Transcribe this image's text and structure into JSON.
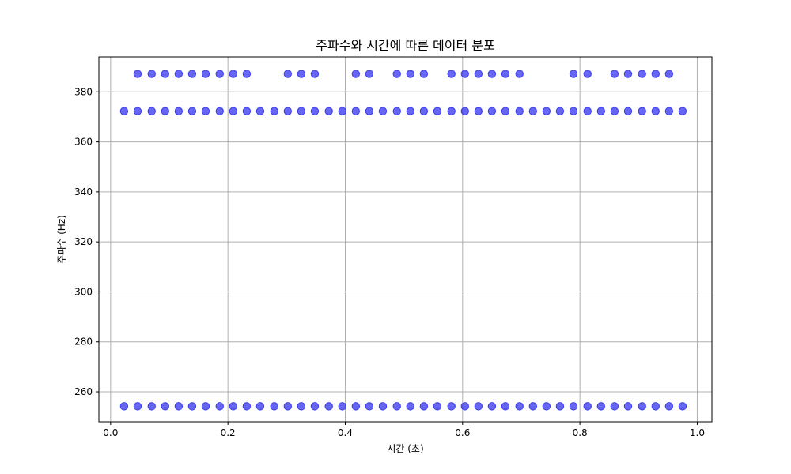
{
  "chart_data": {
    "type": "scatter",
    "title": "주파수와 시간에 따른 데이터 분포",
    "xlabel": "시간 (초)",
    "ylabel": "주파수 (Hz)",
    "xlim": [
      -0.02,
      1.025
    ],
    "ylim": [
      248,
      394
    ],
    "xticks": [
      0.0,
      0.2,
      0.4,
      0.6,
      0.8,
      1.0
    ],
    "xtick_labels": [
      "0.0",
      "0.2",
      "0.4",
      "0.6",
      "0.8",
      "1.0"
    ],
    "yticks": [
      260,
      280,
      300,
      320,
      340,
      360,
      380
    ],
    "ytick_labels": [
      "260",
      "280",
      "300",
      "320",
      "340",
      "360",
      "380"
    ],
    "grid": true,
    "marker_color": "#3333ee",
    "marker_alpha": 0.75,
    "series": [
      {
        "y": 254.2,
        "x": [
          0.023,
          0.046,
          0.07,
          0.093,
          0.116,
          0.139,
          0.162,
          0.186,
          0.209,
          0.232,
          0.255,
          0.279,
          0.302,
          0.325,
          0.348,
          0.372,
          0.395,
          0.418,
          0.441,
          0.464,
          0.488,
          0.511,
          0.534,
          0.557,
          0.581,
          0.604,
          0.627,
          0.65,
          0.673,
          0.697,
          0.72,
          0.743,
          0.766,
          0.789,
          0.813,
          0.836,
          0.859,
          0.882,
          0.906,
          0.929,
          0.952,
          0.975
        ]
      },
      {
        "y": 372.3,
        "x": [
          0.023,
          0.046,
          0.07,
          0.093,
          0.116,
          0.139,
          0.162,
          0.186,
          0.209,
          0.232,
          0.255,
          0.279,
          0.302,
          0.325,
          0.348,
          0.372,
          0.395,
          0.418,
          0.441,
          0.464,
          0.488,
          0.511,
          0.534,
          0.557,
          0.581,
          0.604,
          0.627,
          0.65,
          0.673,
          0.697,
          0.72,
          0.743,
          0.766,
          0.789,
          0.813,
          0.836,
          0.859,
          0.882,
          0.906,
          0.929,
          0.952,
          0.975
        ]
      },
      {
        "y": 387.2,
        "x": [
          0.046,
          0.07,
          0.093,
          0.116,
          0.139,
          0.162,
          0.186,
          0.209,
          0.232,
          0.302,
          0.325,
          0.348,
          0.418,
          0.441,
          0.488,
          0.511,
          0.534,
          0.581,
          0.604,
          0.627,
          0.65,
          0.673,
          0.697,
          0.789,
          0.813,
          0.859,
          0.882,
          0.906,
          0.929,
          0.952
        ]
      }
    ]
  }
}
